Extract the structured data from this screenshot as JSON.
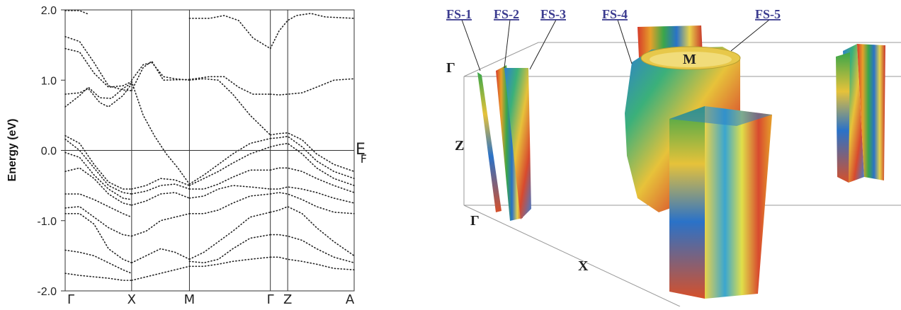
{
  "band_structure": {
    "ylabel": "Energy (eV)",
    "ef_label_main": "E",
    "ef_label_sub": "F"
  },
  "chart_data": {
    "type": "line",
    "title": "",
    "xlabel": "",
    "ylabel": "Energy (eV)",
    "ylim": [
      -2.0,
      2.0
    ],
    "yticks": [
      "2.0",
      "1.0",
      "0.0",
      "-1.0",
      "-2.0"
    ],
    "k_points": [
      "Γ",
      "X",
      "M",
      "Γ",
      "Z",
      "A"
    ],
    "k_path": [
      0,
      0.23,
      0.43,
      0.71,
      0.77,
      1.0
    ],
    "grid": "vertical lines at high-symmetry points; horizontal line at E_F",
    "line_style": "dotted",
    "series": [
      {
        "values": [
          [
            0,
            1.99
          ],
          [
            0.05,
            1.99
          ],
          [
            0.08,
            1.94
          ]
        ]
      },
      {
        "values": [
          [
            0,
            1.62
          ],
          [
            0.05,
            1.55
          ],
          [
            0.1,
            1.25
          ],
          [
            0.15,
            0.92
          ],
          [
            0.2,
            0.86
          ],
          [
            0.23,
            0.85
          ]
        ]
      },
      {
        "values": [
          [
            0,
            1.45
          ],
          [
            0.05,
            1.4
          ],
          [
            0.1,
            1.1
          ],
          [
            0.15,
            0.9
          ],
          [
            0.2,
            0.92
          ],
          [
            0.23,
            0.98
          ]
        ]
      },
      {
        "values": [
          [
            0,
            0.8
          ],
          [
            0.05,
            0.82
          ],
          [
            0.08,
            0.88
          ],
          [
            0.12,
            0.68
          ],
          [
            0.15,
            0.62
          ],
          [
            0.2,
            0.78
          ],
          [
            0.23,
            0.95
          ]
        ]
      },
      {
        "values": [
          [
            0,
            0.62
          ],
          [
            0.05,
            0.78
          ],
          [
            0.08,
            0.9
          ],
          [
            0.12,
            0.75
          ],
          [
            0.16,
            0.74
          ],
          [
            0.2,
            0.88
          ],
          [
            0.23,
            0.96
          ]
        ]
      },
      {
        "values": [
          [
            0,
            0.21
          ],
          [
            0.05,
            0.1
          ],
          [
            0.1,
            -0.2
          ],
          [
            0.15,
            -0.45
          ],
          [
            0.2,
            -0.55
          ],
          [
            0.23,
            -0.55
          ]
        ]
      },
      {
        "values": [
          [
            0,
            0.16
          ],
          [
            0.05,
            0.0
          ],
          [
            0.1,
            -0.25
          ],
          [
            0.15,
            -0.5
          ],
          [
            0.2,
            -0.6
          ],
          [
            0.23,
            -0.62
          ]
        ]
      },
      {
        "values": [
          [
            0,
            -0.03
          ],
          [
            0.05,
            -0.1
          ],
          [
            0.1,
            -0.35
          ],
          [
            0.15,
            -0.55
          ],
          [
            0.2,
            -0.68
          ],
          [
            0.23,
            -0.7
          ]
        ]
      },
      {
        "values": [
          [
            0,
            -0.3
          ],
          [
            0.05,
            -0.25
          ],
          [
            0.1,
            -0.4
          ],
          [
            0.15,
            -0.62
          ],
          [
            0.2,
            -0.75
          ],
          [
            0.23,
            -0.78
          ]
        ]
      },
      {
        "values": [
          [
            0,
            -0.62
          ],
          [
            0.05,
            -0.62
          ],
          [
            0.1,
            -0.7
          ],
          [
            0.15,
            -0.8
          ],
          [
            0.2,
            -0.9
          ],
          [
            0.23,
            -0.95
          ]
        ]
      },
      {
        "values": [
          [
            0,
            -0.82
          ],
          [
            0.05,
            -0.8
          ],
          [
            0.1,
            -0.95
          ],
          [
            0.15,
            -1.1
          ],
          [
            0.2,
            -1.2
          ],
          [
            0.23,
            -1.22
          ]
        ]
      },
      {
        "values": [
          [
            0,
            -0.9
          ],
          [
            0.05,
            -0.9
          ],
          [
            0.1,
            -1.05
          ],
          [
            0.15,
            -1.4
          ],
          [
            0.2,
            -1.55
          ],
          [
            0.23,
            -1.6
          ]
        ]
      },
      {
        "values": [
          [
            0,
            -1.42
          ],
          [
            0.05,
            -1.45
          ],
          [
            0.1,
            -1.5
          ],
          [
            0.15,
            -1.6
          ],
          [
            0.2,
            -1.7
          ],
          [
            0.23,
            -1.75
          ]
        ]
      },
      {
        "values": [
          [
            0,
            -1.75
          ],
          [
            0.05,
            -1.78
          ],
          [
            0.1,
            -1.8
          ],
          [
            0.15,
            -1.82
          ],
          [
            0.2,
            -1.85
          ],
          [
            0.23,
            -1.85
          ]
        ]
      },
      {
        "values": [
          [
            0.23,
            1.0
          ],
          [
            0.27,
            1.22
          ],
          [
            0.3,
            1.25
          ],
          [
            0.34,
            1.05
          ],
          [
            0.38,
            1.02
          ],
          [
            0.43,
            1.0
          ]
        ]
      },
      {
        "values": [
          [
            0.23,
            0.85
          ],
          [
            0.27,
            1.18
          ],
          [
            0.3,
            1.27
          ],
          [
            0.34,
            1.0
          ],
          [
            0.43,
            1.01
          ]
        ]
      },
      {
        "values": [
          [
            0.23,
            0.98
          ],
          [
            0.27,
            0.5
          ],
          [
            0.31,
            0.2
          ],
          [
            0.35,
            -0.05
          ],
          [
            0.39,
            -0.25
          ],
          [
            0.43,
            -0.48
          ]
        ]
      },
      {
        "values": [
          [
            0.23,
            -0.55
          ],
          [
            0.28,
            -0.5
          ],
          [
            0.33,
            -0.4
          ],
          [
            0.38,
            -0.42
          ],
          [
            0.43,
            -0.5
          ]
        ]
      },
      {
        "values": [
          [
            0.23,
            -0.62
          ],
          [
            0.28,
            -0.58
          ],
          [
            0.33,
            -0.5
          ],
          [
            0.38,
            -0.48
          ],
          [
            0.43,
            -0.55
          ]
        ]
      },
      {
        "values": [
          [
            0.23,
            -0.78
          ],
          [
            0.28,
            -0.72
          ],
          [
            0.33,
            -0.62
          ],
          [
            0.38,
            -0.6
          ],
          [
            0.43,
            -0.68
          ]
        ]
      },
      {
        "values": [
          [
            0.23,
            -1.22
          ],
          [
            0.28,
            -1.15
          ],
          [
            0.33,
            -1.0
          ],
          [
            0.38,
            -0.95
          ],
          [
            0.43,
            -0.9
          ]
        ]
      },
      {
        "values": [
          [
            0.23,
            -1.6
          ],
          [
            0.28,
            -1.5
          ],
          [
            0.33,
            -1.4
          ],
          [
            0.38,
            -1.45
          ],
          [
            0.43,
            -1.55
          ]
        ]
      },
      {
        "values": [
          [
            0.23,
            -1.85
          ],
          [
            0.28,
            -1.8
          ],
          [
            0.33,
            -1.75
          ],
          [
            0.38,
            -1.7
          ],
          [
            0.43,
            -1.65
          ]
        ]
      },
      {
        "values": [
          [
            0.43,
            1.88
          ],
          [
            0.5,
            1.88
          ],
          [
            0.55,
            1.92
          ],
          [
            0.6,
            1.85
          ],
          [
            0.65,
            1.6
          ],
          [
            0.71,
            1.45
          ]
        ]
      },
      {
        "values": [
          [
            0.43,
            1.01
          ],
          [
            0.5,
            1.05
          ],
          [
            0.55,
            1.05
          ],
          [
            0.6,
            0.9
          ],
          [
            0.65,
            0.8
          ],
          [
            0.71,
            0.8
          ]
        ]
      },
      {
        "values": [
          [
            0.43,
            1.0
          ],
          [
            0.48,
            1.02
          ],
          [
            0.53,
            1.0
          ],
          [
            0.58,
            0.8
          ],
          [
            0.64,
            0.5
          ],
          [
            0.71,
            0.22
          ]
        ]
      },
      {
        "values": [
          [
            0.43,
            -0.48
          ],
          [
            0.48,
            -0.35
          ],
          [
            0.53,
            -0.2
          ],
          [
            0.58,
            -0.05
          ],
          [
            0.64,
            0.1
          ],
          [
            0.71,
            0.17
          ]
        ]
      },
      {
        "values": [
          [
            0.43,
            -0.5
          ],
          [
            0.48,
            -0.4
          ],
          [
            0.53,
            -0.3
          ],
          [
            0.58,
            -0.18
          ],
          [
            0.64,
            -0.05
          ],
          [
            0.71,
            0.05
          ]
        ]
      },
      {
        "values": [
          [
            0.43,
            -0.55
          ],
          [
            0.48,
            -0.55
          ],
          [
            0.53,
            -0.48
          ],
          [
            0.58,
            -0.38
          ],
          [
            0.64,
            -0.28
          ],
          [
            0.71,
            -0.28
          ]
        ]
      },
      {
        "values": [
          [
            0.43,
            -0.68
          ],
          [
            0.48,
            -0.65
          ],
          [
            0.53,
            -0.55
          ],
          [
            0.58,
            -0.5
          ],
          [
            0.64,
            -0.52
          ],
          [
            0.71,
            -0.55
          ]
        ]
      },
      {
        "values": [
          [
            0.43,
            -0.9
          ],
          [
            0.48,
            -0.9
          ],
          [
            0.53,
            -0.85
          ],
          [
            0.58,
            -0.75
          ],
          [
            0.64,
            -0.65
          ],
          [
            0.71,
            -0.62
          ]
        ]
      },
      {
        "values": [
          [
            0.43,
            -1.55
          ],
          [
            0.48,
            -1.45
          ],
          [
            0.53,
            -1.3
          ],
          [
            0.58,
            -1.15
          ],
          [
            0.64,
            -0.95
          ],
          [
            0.71,
            -0.88
          ]
        ]
      },
      {
        "values": [
          [
            0.43,
            -1.58
          ],
          [
            0.48,
            -1.6
          ],
          [
            0.53,
            -1.55
          ],
          [
            0.58,
            -1.4
          ],
          [
            0.64,
            -1.25
          ],
          [
            0.71,
            -1.2
          ]
        ]
      },
      {
        "values": [
          [
            0.43,
            -1.65
          ],
          [
            0.48,
            -1.65
          ],
          [
            0.53,
            -1.62
          ],
          [
            0.58,
            -1.58
          ],
          [
            0.64,
            -1.55
          ],
          [
            0.71,
            -1.52
          ]
        ]
      },
      {
        "values": [
          [
            0.71,
            1.45
          ],
          [
            0.74,
            1.7
          ],
          [
            0.77,
            1.85
          ],
          [
            0.8,
            1.92
          ],
          [
            0.85,
            1.95
          ],
          [
            0.9,
            1.9
          ],
          [
            1.0,
            1.88
          ]
        ]
      },
      {
        "values": [
          [
            0.71,
            0.8
          ],
          [
            0.74,
            0.79
          ],
          [
            0.77,
            0.8
          ],
          [
            0.82,
            0.82
          ],
          [
            0.87,
            0.9
          ],
          [
            0.93,
            1.0
          ],
          [
            1.0,
            1.02
          ]
        ]
      },
      {
        "values": [
          [
            0.71,
            0.22
          ],
          [
            0.74,
            0.24
          ],
          [
            0.77,
            0.25
          ],
          [
            0.82,
            0.15
          ],
          [
            0.87,
            -0.05
          ],
          [
            0.93,
            -0.2
          ],
          [
            1.0,
            -0.3
          ]
        ]
      },
      {
        "values": [
          [
            0.71,
            0.17
          ],
          [
            0.74,
            0.18
          ],
          [
            0.77,
            0.2
          ],
          [
            0.82,
            0.05
          ],
          [
            0.87,
            -0.15
          ],
          [
            0.93,
            -0.3
          ],
          [
            1.0,
            -0.4
          ]
        ]
      },
      {
        "values": [
          [
            0.71,
            0.05
          ],
          [
            0.74,
            0.08
          ],
          [
            0.77,
            0.1
          ],
          [
            0.82,
            -0.05
          ],
          [
            0.87,
            -0.25
          ],
          [
            0.93,
            -0.4
          ],
          [
            1.0,
            -0.5
          ]
        ]
      },
      {
        "values": [
          [
            0.71,
            -0.28
          ],
          [
            0.74,
            -0.25
          ],
          [
            0.77,
            -0.25
          ],
          [
            0.82,
            -0.3
          ],
          [
            0.87,
            -0.4
          ],
          [
            0.93,
            -0.5
          ],
          [
            1.0,
            -0.6
          ]
        ]
      },
      {
        "values": [
          [
            0.71,
            -0.55
          ],
          [
            0.74,
            -0.55
          ],
          [
            0.77,
            -0.52
          ],
          [
            0.82,
            -0.55
          ],
          [
            0.87,
            -0.6
          ],
          [
            0.93,
            -0.68
          ],
          [
            1.0,
            -0.75
          ]
        ]
      },
      {
        "values": [
          [
            0.71,
            -0.62
          ],
          [
            0.74,
            -0.6
          ],
          [
            0.77,
            -0.62
          ],
          [
            0.82,
            -0.7
          ],
          [
            0.87,
            -0.8
          ],
          [
            0.93,
            -0.88
          ],
          [
            1.0,
            -0.9
          ]
        ]
      },
      {
        "values": [
          [
            0.71,
            -0.88
          ],
          [
            0.74,
            -0.85
          ],
          [
            0.77,
            -0.8
          ],
          [
            0.82,
            -0.9
          ],
          [
            0.87,
            -1.1
          ],
          [
            0.93,
            -1.3
          ],
          [
            1.0,
            -1.5
          ]
        ]
      },
      {
        "values": [
          [
            0.71,
            -1.2
          ],
          [
            0.74,
            -1.2
          ],
          [
            0.77,
            -1.22
          ],
          [
            0.82,
            -1.28
          ],
          [
            0.87,
            -1.4
          ],
          [
            0.93,
            -1.52
          ],
          [
            1.0,
            -1.6
          ]
        ]
      },
      {
        "values": [
          [
            0.71,
            -1.52
          ],
          [
            0.74,
            -1.52
          ],
          [
            0.77,
            -1.55
          ],
          [
            0.82,
            -1.58
          ],
          [
            0.87,
            -1.62
          ],
          [
            0.93,
            -1.68
          ],
          [
            1.0,
            -1.7
          ]
        ]
      }
    ]
  },
  "fermi_surface": {
    "sheet_labels": [
      "FS-1",
      "FS-2",
      "FS-3",
      "FS-4",
      "FS-5"
    ],
    "axis_labels": {
      "gamma_top": "Γ",
      "z": "Z",
      "gamma_bottom": "Γ",
      "x": "X",
      "m": "M"
    },
    "colors": {
      "label": "#3b3b8f",
      "box": "#9a9a9a"
    }
  }
}
